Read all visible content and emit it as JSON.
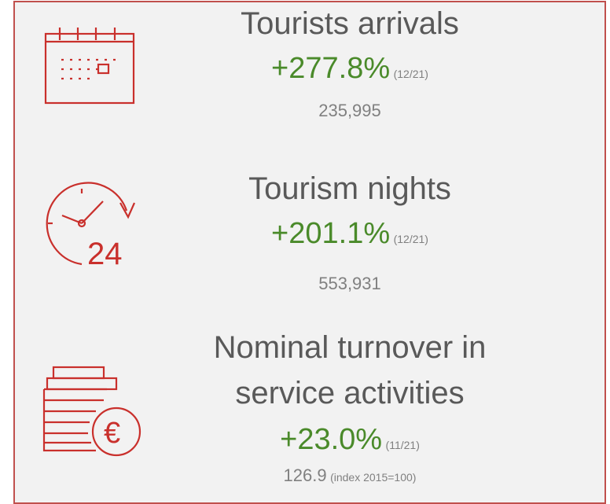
{
  "items": [
    {
      "title": [
        "Tourists arrivals"
      ],
      "change": "+277.8%",
      "period": "(12/21)",
      "value": "235,995"
    },
    {
      "title": [
        "Tourism nights"
      ],
      "change": "+201.1%",
      "period": "(12/21)",
      "value": "553,931"
    },
    {
      "title": [
        "Nominal turnover in",
        "service activities"
      ],
      "change": "+23.0%",
      "period": "(11/21)",
      "value": "126.9",
      "note": "(index 2015=100)"
    }
  ]
}
